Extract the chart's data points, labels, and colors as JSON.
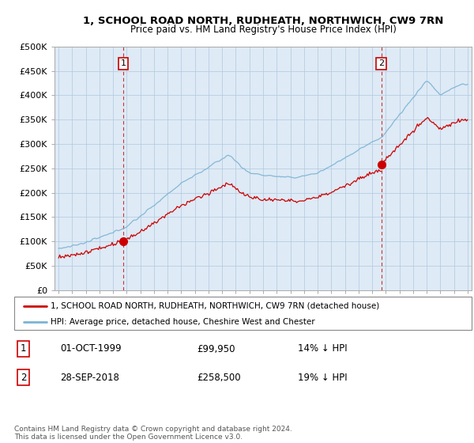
{
  "title": "1, SCHOOL ROAD NORTH, RUDHEATH, NORTHWICH, CW9 7RN",
  "subtitle": "Price paid vs. HM Land Registry's House Price Index (HPI)",
  "ylabel_ticks": [
    "£0",
    "£50K",
    "£100K",
    "£150K",
    "£200K",
    "£250K",
    "£300K",
    "£350K",
    "£400K",
    "£450K",
    "£500K"
  ],
  "ytick_values": [
    0,
    50000,
    100000,
    150000,
    200000,
    250000,
    300000,
    350000,
    400000,
    450000,
    500000
  ],
  "ylim": [
    0,
    500000
  ],
  "sale1_time": 1999.75,
  "sale1_price": 99950,
  "sale2_time": 2018.67,
  "sale2_price": 258500,
  "legend_line1": "1, SCHOOL ROAD NORTH, RUDHEATH, NORTHWICH, CW9 7RN (detached house)",
  "legend_line2": "HPI: Average price, detached house, Cheshire West and Chester",
  "table_row1": [
    "1",
    "01-OCT-1999",
    "£99,950",
    "14% ↓ HPI"
  ],
  "table_row2": [
    "2",
    "28-SEP-2018",
    "£258,500",
    "19% ↓ HPI"
  ],
  "footnote": "Contains HM Land Registry data © Crown copyright and database right 2024.\nThis data is licensed under the Open Government Licence v3.0.",
  "hpi_color": "#7ab3d4",
  "sale_color": "#cc0000",
  "dashed_color": "#cc0000",
  "background_color": "#ffffff",
  "chart_bg_color": "#deeaf5",
  "grid_color": "#b0c8e0"
}
